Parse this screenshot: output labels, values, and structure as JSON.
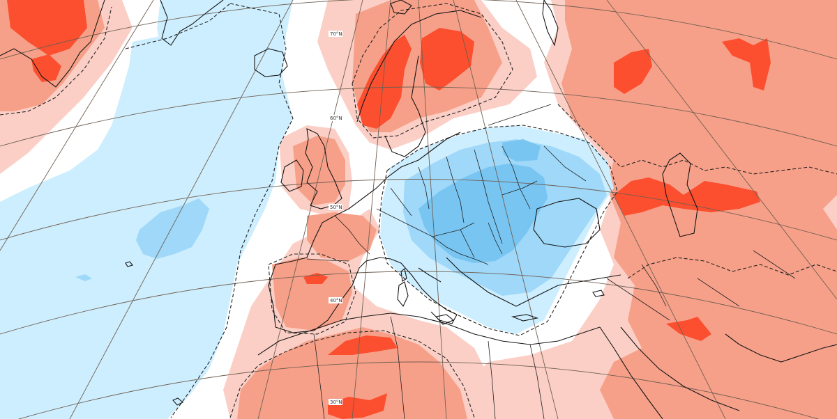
{
  "map": {
    "lat_labels": {
      "lat70": "70°N",
      "lat60": "60°N",
      "lat50": "50°N",
      "lat40": "40°N",
      "lat30": "30°N"
    },
    "colors": {
      "strong_warm": "#fb4f2f",
      "warm": "#f7a089",
      "weak_warm": "#fbcfc6",
      "neutral": "#ffffff",
      "weak_cold": "#cdeefe",
      "cold": "#9fd8f8",
      "strong_cold": "#79c5f2"
    }
  }
}
